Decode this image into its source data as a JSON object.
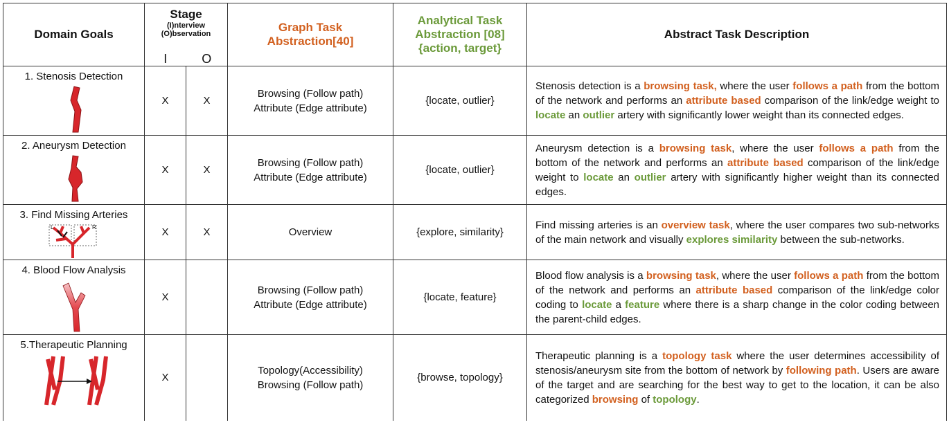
{
  "header": {
    "domain_goals": "Domain Goals",
    "stage": "Stage",
    "interview": "(I)nterview",
    "observation": "(O)bservation",
    "stage_i": "I",
    "stage_o": "O",
    "graph_task": [
      "Graph Task",
      "Abstraction[40]"
    ],
    "analytical_task": [
      "Analytical Task",
      "Abstraction [08]",
      "{action, target}"
    ],
    "description": "Abstract Task Description"
  },
  "rows": [
    {
      "goal": "1. Stenosis Detection",
      "icon": "stenosis",
      "interview": "X",
      "observation": "X",
      "graph_task": [
        "Browsing (Follow path)",
        "Attribute (Edge attribute)"
      ],
      "analytical_task": "{locate, outlier}",
      "description": [
        {
          "text": "Stenosis detection is a ",
          "style": "plain"
        },
        {
          "text": "browsing task,",
          "style": "graph"
        },
        {
          "text": " where the user ",
          "style": "plain"
        },
        {
          "text": "follows a path",
          "style": "graph"
        },
        {
          "text": " from the bottom of the network and performs an ",
          "style": "plain"
        },
        {
          "text": "attribute based",
          "style": "graph"
        },
        {
          "text": " comparison of the link/edge weight  to ",
          "style": "plain"
        },
        {
          "text": "locate",
          "style": "analytical"
        },
        {
          "text": " an ",
          "style": "plain"
        },
        {
          "text": "outlier",
          "style": "analytical"
        },
        {
          "text": " artery with significantly lower weight than its connected edges.",
          "style": "plain"
        }
      ]
    },
    {
      "goal": "2. Aneurysm Detection",
      "icon": "aneurysm",
      "interview": "X",
      "observation": "X",
      "graph_task": [
        "Browsing (Follow path)",
        "Attribute (Edge attribute)"
      ],
      "analytical_task": "{locate, outlier}",
      "description": [
        {
          "text": "Aneurysm detection is a ",
          "style": "plain"
        },
        {
          "text": "browsing task",
          "style": "graph"
        },
        {
          "text": ", where the user ",
          "style": "plain"
        },
        {
          "text": "follows a path",
          "style": "graph"
        },
        {
          "text": " from the bottom of the network and performs an ",
          "style": "plain"
        },
        {
          "text": "attribute based",
          "style": "graph"
        },
        {
          "text": " comparison of the link/edge weight  to ",
          "style": "plain"
        },
        {
          "text": "locate",
          "style": "analytical"
        },
        {
          "text": " an ",
          "style": "plain"
        },
        {
          "text": "outlier",
          "style": "analytical"
        },
        {
          "text": " artery with significantly higher weight than its connected edges.",
          "style": "plain"
        }
      ]
    },
    {
      "goal": "3. Find Missing Arteries",
      "icon": "missing",
      "icon_labels": [
        "L",
        "R"
      ],
      "interview": "X",
      "observation": "X",
      "graph_task": [
        "Overview"
      ],
      "analytical_task": "{explore, similarity}",
      "description": [
        {
          "text": "Find missing arteries is an ",
          "style": "plain"
        },
        {
          "text": "overview task",
          "style": "graph"
        },
        {
          "text": ", where the user compares two sub-networks of the main network and visually ",
          "style": "plain"
        },
        {
          "text": "explores similarity",
          "style": "analytical"
        },
        {
          "text": " between the sub-networks.",
          "style": "plain"
        }
      ]
    },
    {
      "goal": "4. Blood Flow Analysis",
      "icon": "flow",
      "interview": "X",
      "graph_task": [
        "Browsing (Follow path)",
        "Attribute (Edge attribute)"
      ],
      "analytical_task": "{locate, feature}",
      "description": [
        {
          "text": "Blood flow analysis is a ",
          "style": "plain"
        },
        {
          "text": "browsing task",
          "style": "graph"
        },
        {
          "text": ", where the user ",
          "style": "plain"
        },
        {
          "text": "follows a path",
          "style": "graph"
        },
        {
          "text": " from the bottom of the network and performs an ",
          "style": "plain"
        },
        {
          "text": "attribute based",
          "style": "graph"
        },
        {
          "text": " comparison of the link/edge color coding to ",
          "style": "plain"
        },
        {
          "text": "locate",
          "style": "analytical"
        },
        {
          "text": " a ",
          "style": "plain"
        },
        {
          "text": "feature",
          "style": "analytical"
        },
        {
          "text": " where there is a sharp change in the color coding between the parent-child edges.",
          "style": "plain"
        }
      ]
    },
    {
      "goal": "5.Therapeutic Planning",
      "icon": "planning",
      "interview": "X",
      "graph_task": [
        "Topology(Accessibility)",
        "Browsing (Follow path)"
      ],
      "analytical_task": "{browse, topology}",
      "description": [
        {
          "text": "Therapeutic planning is a ",
          "style": "plain"
        },
        {
          "text": "topology task",
          "style": "graph"
        },
        {
          "text": " where the user determines accessibility of stenosis/aneurysm site from the bottom of network by ",
          "style": "plain"
        },
        {
          "text": "following path",
          "style": "graph"
        },
        {
          "text": ". Users are aware of the target and are searching for the best way to get to the location, it can be also categorized ",
          "style": "plain"
        },
        {
          "text": "browsing",
          "style": "graph"
        },
        {
          "text": " of ",
          "style": "plain"
        },
        {
          "text": "topology",
          "style": "analytical"
        },
        {
          "text": ".",
          "style": "plain"
        }
      ]
    }
  ]
}
